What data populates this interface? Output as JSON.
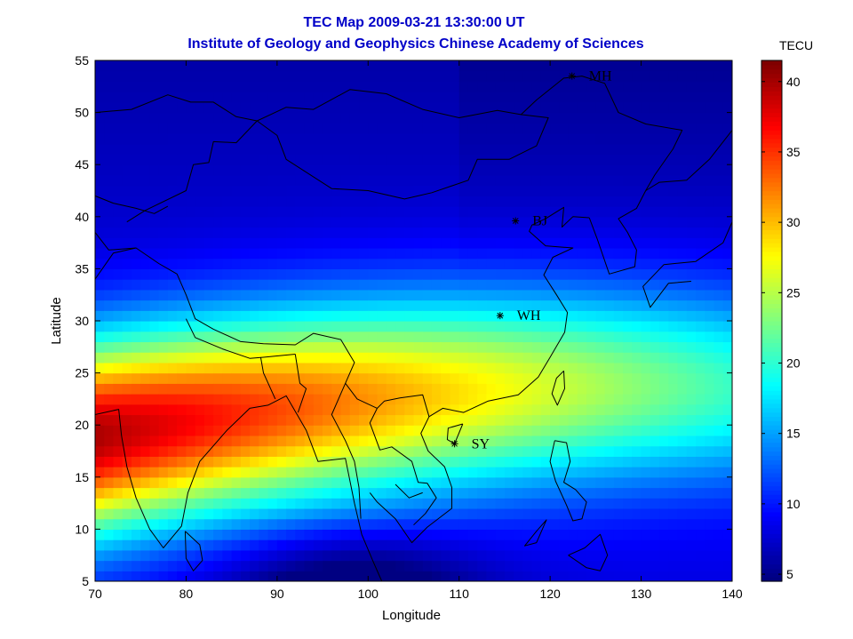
{
  "chart_data": {
    "type": "heatmap",
    "title": "TEC Map 2009-03-21 13:30:00 UT",
    "subtitle": "Institute of Geology and Geophysics Chinese Academy of Sciences",
    "xlabel": "Longitude",
    "ylabel": "Latitude",
    "xlim": [
      70,
      140
    ],
    "ylim": [
      5,
      55
    ],
    "x_ticks": [
      70,
      80,
      90,
      100,
      110,
      120,
      130,
      140
    ],
    "y_ticks": [
      5,
      10,
      15,
      20,
      25,
      30,
      35,
      40,
      45,
      50,
      55
    ],
    "colorbar": {
      "label": "TECU",
      "range": [
        4.5,
        41.5
      ],
      "ticks": [
        5,
        10,
        15,
        20,
        25,
        30,
        35,
        40
      ],
      "colormap": "jet"
    },
    "stations": [
      {
        "name": "MH",
        "lon": 122.4,
        "lat": 53.5
      },
      {
        "name": "BJ",
        "lon": 116.2,
        "lat": 39.6
      },
      {
        "name": "WH",
        "lon": 114.5,
        "lat": 30.5
      },
      {
        "name": "SY",
        "lon": 109.5,
        "lat": 18.2
      }
    ]
  }
}
